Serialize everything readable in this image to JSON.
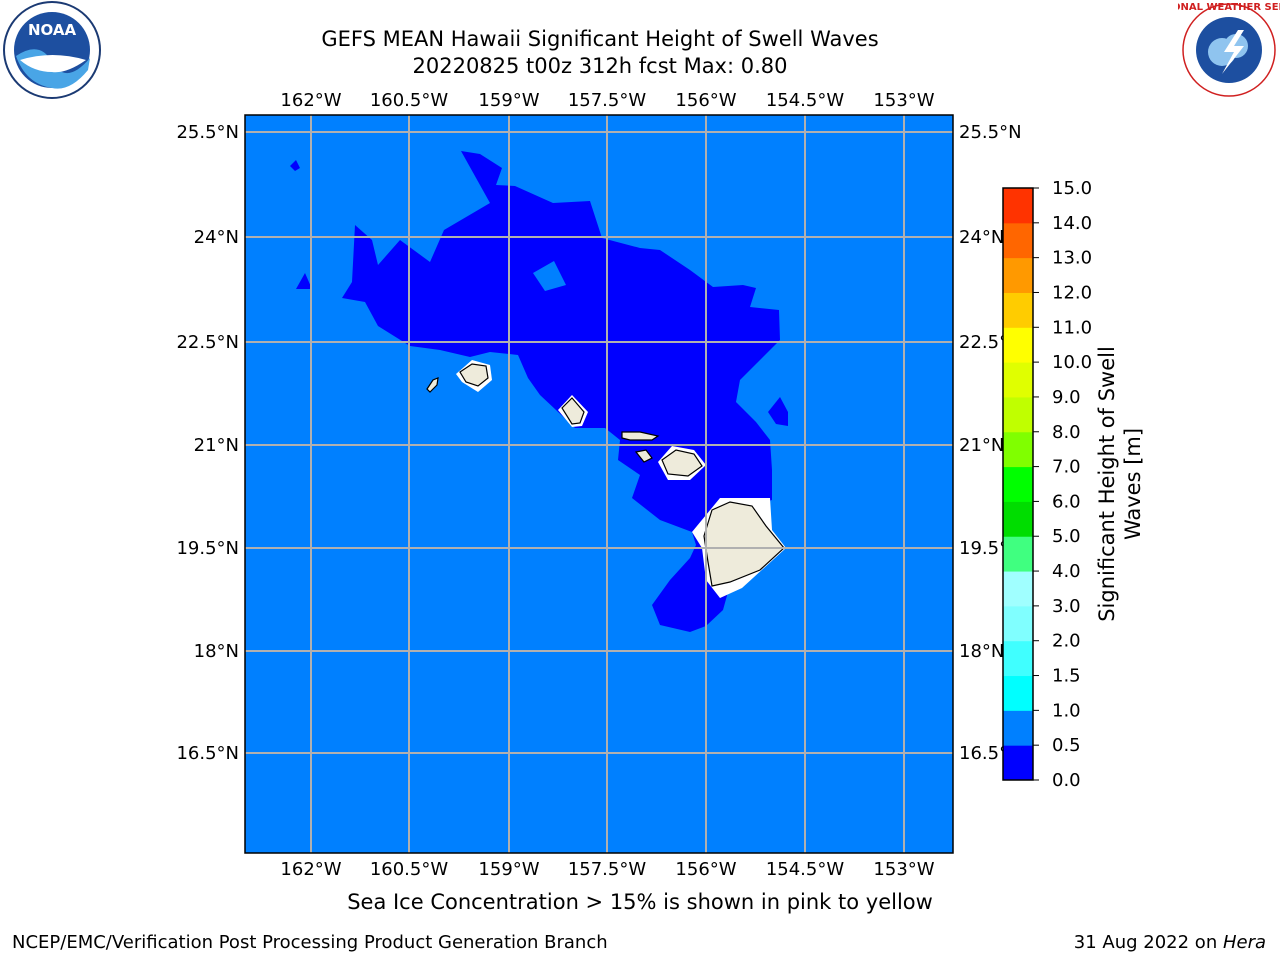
{
  "title": {
    "line1": "GEFS MEAN Hawaii Significant Height of Swell Waves",
    "line2": "20220825 t00z 312h fcst   Max: 0.80"
  },
  "map": {
    "lon_labels": [
      "162°W",
      "160.5°W",
      "159°W",
      "157.5°W",
      "156°W",
      "154.5°W",
      "153°W"
    ],
    "lat_labels": [
      "25.5°N",
      "24°N",
      "22.5°N",
      "21°N",
      "19.5°N",
      "18°N",
      "16.5°N"
    ],
    "colors": {
      "ocean": "#0080ff",
      "low_band": "#0000ff",
      "land": "#eeebdb",
      "grid": "#b0b0b0"
    }
  },
  "colorbar": {
    "label_line1": "Significant Height of Swell",
    "label_line2": "Waves [m]",
    "ticks": [
      "0.0",
      "0.5",
      "1.0",
      "1.5",
      "2.0",
      "3.0",
      "4.0",
      "5.0",
      "6.0",
      "7.0",
      "8.0",
      "9.0",
      "10.0",
      "11.0",
      "12.0",
      "13.0",
      "14.0",
      "15.0"
    ],
    "colors": [
      "#0000ff",
      "#0080ff",
      "#00ffff",
      "#40ffff",
      "#80ffff",
      "#a0ffff",
      "#40ff80",
      "#00dd00",
      "#00ff00",
      "#80ff00",
      "#c0ff00",
      "#e0ff00",
      "#ffff00",
      "#ffcc00",
      "#ff9900",
      "#ff6600",
      "#ff3300",
      "#ff0000"
    ]
  },
  "note": "Sea Ice Concentration > 15% is shown in pink to yellow",
  "footer": {
    "left": "NCEP/EMC/Verification Post Processing Product Generation Branch",
    "right_prefix": "31 Aug 2022 on ",
    "right_machine": "Hera"
  },
  "logos": {
    "noaa": "NOAA",
    "nws": "NATIONAL WEATHER SERVICE"
  }
}
